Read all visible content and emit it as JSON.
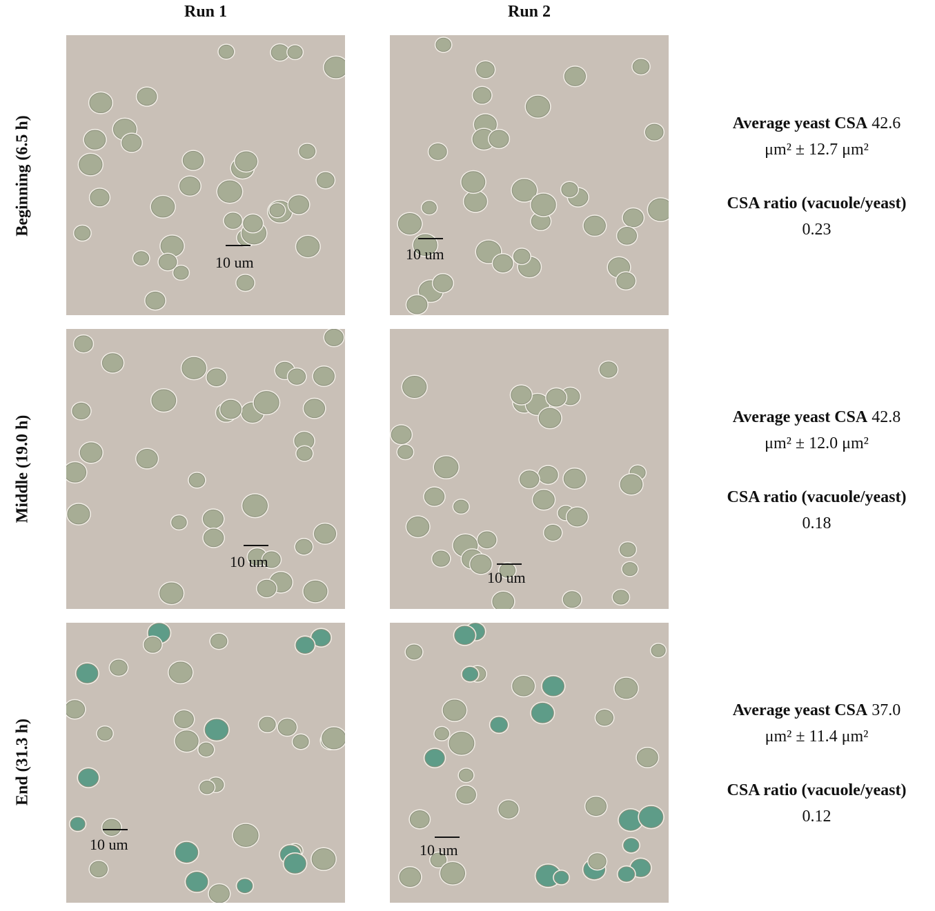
{
  "columns": [
    "Run 1",
    "Run 2"
  ],
  "rows": [
    {
      "label": "Beginning (6.5 h)",
      "scale_labels": [
        "10 um",
        "10 um"
      ],
      "stats": {
        "avg_label": "Average yeast CSA",
        "avg_value": "42.6",
        "avg_line2": "μm² ± 12.7 μm²",
        "ratio_label": "CSA ratio (vacuole/yeast)",
        "ratio_value": "0.23"
      }
    },
    {
      "label": "Middle (19.0 h)",
      "scale_labels": [
        "10 um",
        "10 um"
      ],
      "stats": {
        "avg_label": "Average yeast CSA",
        "avg_value": "42.8",
        "avg_line2": "μm² ± 12.0 μm²",
        "ratio_label": "CSA ratio (vacuole/yeast)",
        "ratio_value": "0.18"
      }
    },
    {
      "label": "End (31.3 h)",
      "scale_labels": [
        "10 um",
        "10 um"
      ],
      "stats": {
        "avg_label": "Average yeast CSA",
        "avg_value": "37.0",
        "avg_line2": "μm² ± 11.4 μm²",
        "ratio_label": "CSA ratio (vacuole/yeast)",
        "ratio_value": "0.12"
      }
    }
  ],
  "colors": {
    "background": "#c9c0b7",
    "cell_fill": "#a7ad95",
    "cell_rim": "#f3f0e8",
    "stained_cell": "#5e9c88"
  }
}
